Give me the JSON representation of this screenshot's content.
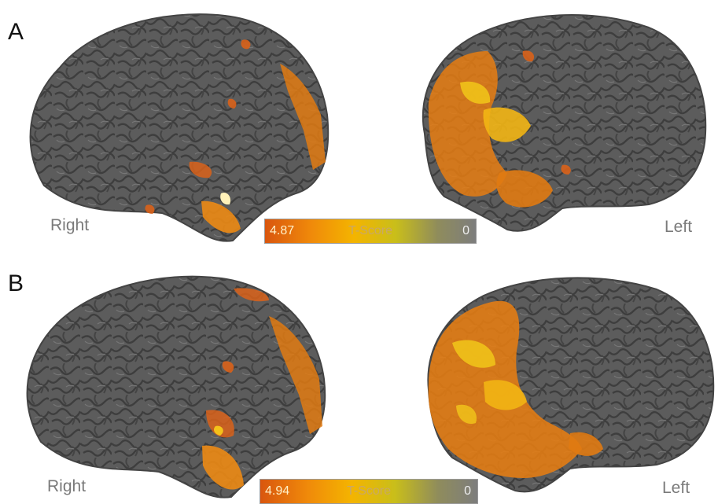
{
  "panels": [
    {
      "letter": "A",
      "left_label": "Right",
      "right_label": "Left",
      "colorbar": {
        "max": "4.87",
        "title": "T-Score",
        "min": "0"
      }
    },
    {
      "letter": "B",
      "left_label": "Right",
      "right_label": "Left",
      "colorbar": {
        "max": "4.94",
        "title": "T-Score",
        "min": "0"
      }
    }
  ],
  "colors": {
    "cortex": "#5c5c5c",
    "sulcus": "#3f3f3f",
    "activation_high": "#d9560e",
    "activation_mid": "#f08a0a",
    "activation_low": "#f4b400"
  }
}
